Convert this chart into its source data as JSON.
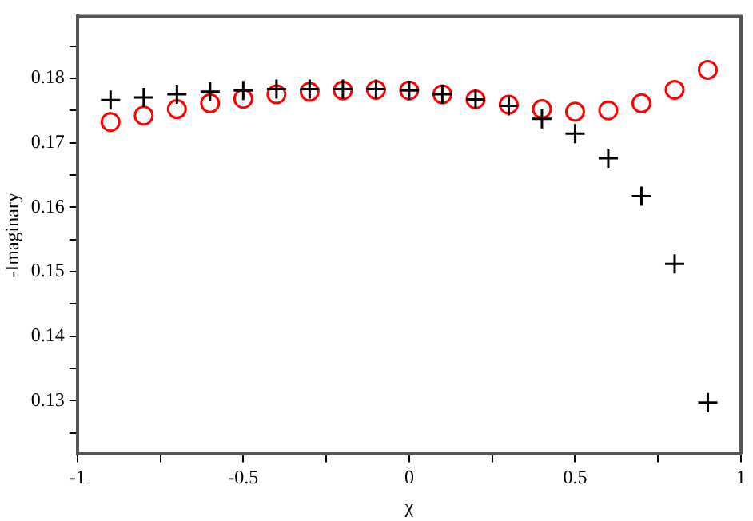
{
  "chart_data": {
    "type": "scatter",
    "xlabel": "χ",
    "ylabel": "-Imaginary",
    "x": [
      -0.9,
      -0.8,
      -0.7,
      -0.6,
      -0.5,
      -0.4,
      -0.3,
      -0.2,
      -0.1,
      0,
      0.1,
      0.2,
      0.3,
      0.4,
      0.5,
      0.6,
      0.7,
      0.8,
      0.9
    ],
    "series": [
      {
        "color": "#000000",
        "marker": "cross",
        "values": [
          0.1766,
          0.177,
          0.1775,
          0.1779,
          0.1781,
          0.1783,
          0.1783,
          0.1783,
          0.1783,
          0.1781,
          0.1775,
          0.1767,
          0.1757,
          0.1737,
          0.1714,
          0.1676,
          0.1617,
          0.1512,
          0.1297
        ]
      },
      {
        "color": "#ff0000",
        "marker": "circle",
        "values": [
          0.1732,
          0.1742,
          0.1752,
          0.1761,
          0.1768,
          0.1775,
          0.1779,
          0.1781,
          0.1782,
          0.1781,
          0.1775,
          0.1767,
          0.1759,
          0.1752,
          0.1748,
          0.175,
          0.1761,
          0.1782,
          0.1813
        ]
      }
    ],
    "xlim": [
      -1,
      1
    ],
    "ylim": [
      0.1217,
      0.1896
    ],
    "xticks": [
      -1,
      {
        "value": -0.75,
        "label": null
      },
      -0.5,
      {
        "value": -0.25,
        "label": null
      },
      0,
      {
        "value": 0.25,
        "label": null
      },
      0.5,
      {
        "value": 0.75,
        "label": null
      },
      1
    ],
    "yticks": [
      {
        "value": 0.125,
        "label": null
      },
      0.13,
      {
        "value": 0.135,
        "label": null
      },
      0.14,
      {
        "value": 0.145,
        "label": null
      },
      0.15,
      {
        "value": 0.155,
        "label": null
      },
      0.16,
      {
        "value": 0.165,
        "label": null
      },
      0.17,
      {
        "value": 0.175,
        "label": null
      },
      0.18,
      {
        "value": 0.185,
        "label": null
      }
    ],
    "grid": false,
    "legend": false
  }
}
